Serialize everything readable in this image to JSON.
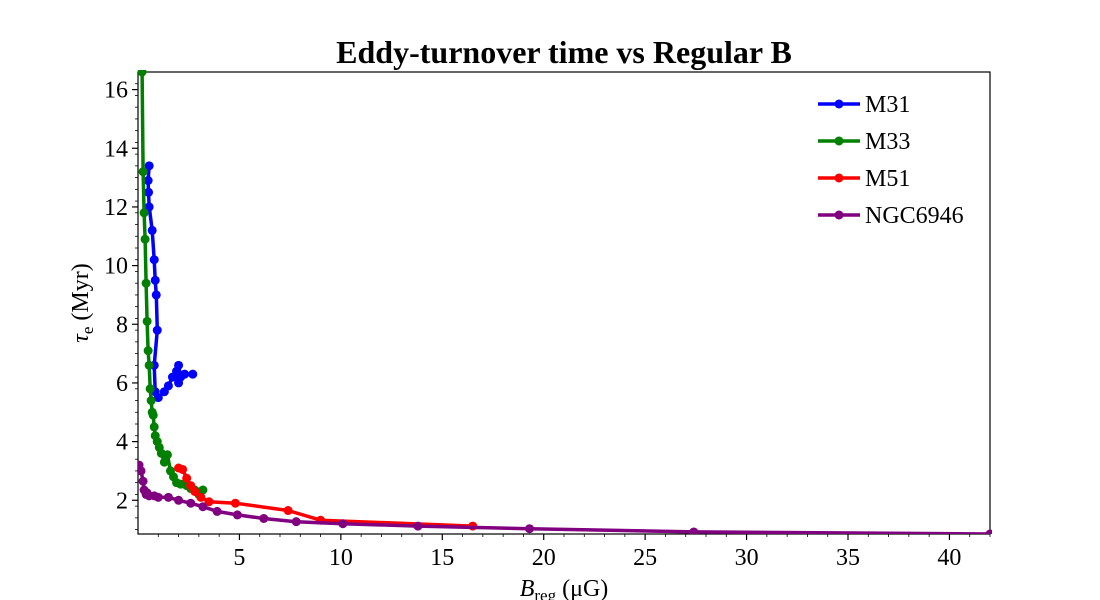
{
  "chart_data": {
    "type": "line",
    "title": "Eddy-turnover time vs Regular B",
    "xlabel": {
      "main": "B",
      "sub": "reg",
      "rest": " (μG)"
    },
    "ylabel": {
      "main": "τ",
      "sub": "e",
      "rest": " (Myr)"
    },
    "xlim": [
      0,
      42
    ],
    "ylim": [
      0.85,
      16.6
    ],
    "xticks": [
      5,
      10,
      15,
      20,
      25,
      30,
      35,
      40
    ],
    "yticks": [
      2,
      4,
      6,
      8,
      10,
      12,
      14,
      16
    ],
    "legend_position": "top-right",
    "series": [
      {
        "name": "M31",
        "color": "#0000ff",
        "points": [
          [
            0.55,
            13.4
          ],
          [
            0.5,
            12.9
          ],
          [
            0.52,
            12.5
          ],
          [
            0.55,
            12.0
          ],
          [
            0.7,
            11.2
          ],
          [
            0.8,
            10.2
          ],
          [
            0.85,
            9.5
          ],
          [
            0.9,
            9.0
          ],
          [
            0.95,
            7.8
          ],
          [
            0.8,
            6.6
          ],
          [
            0.85,
            5.7
          ],
          [
            1.0,
            5.5
          ],
          [
            1.3,
            5.7
          ],
          [
            1.5,
            5.9
          ],
          [
            1.7,
            6.2
          ],
          [
            1.9,
            6.4
          ],
          [
            2.0,
            6.6
          ],
          [
            2.1,
            6.2
          ],
          [
            2.0,
            6.0
          ],
          [
            2.3,
            6.3
          ],
          [
            2.7,
            6.3
          ]
        ]
      },
      {
        "name": "M33",
        "color": "#008000",
        "points": [
          [
            0.2,
            16.6
          ],
          [
            0.25,
            13.2
          ],
          [
            0.3,
            11.8
          ],
          [
            0.35,
            10.9
          ],
          [
            0.4,
            9.4
          ],
          [
            0.45,
            8.1
          ],
          [
            0.5,
            7.1
          ],
          [
            0.55,
            6.6
          ],
          [
            0.6,
            5.8
          ],
          [
            0.65,
            5.4
          ],
          [
            0.7,
            5.0
          ],
          [
            0.75,
            4.9
          ],
          [
            0.8,
            4.5
          ],
          [
            0.85,
            4.2
          ],
          [
            0.95,
            4.0
          ],
          [
            1.05,
            3.8
          ],
          [
            1.15,
            3.6
          ],
          [
            1.3,
            3.3
          ],
          [
            1.45,
            3.55
          ],
          [
            1.6,
            3.0
          ],
          [
            1.75,
            2.8
          ],
          [
            1.9,
            2.6
          ],
          [
            2.1,
            2.55
          ],
          [
            2.4,
            2.5
          ],
          [
            2.6,
            2.4
          ],
          [
            2.8,
            2.35
          ],
          [
            3.0,
            2.2
          ],
          [
            3.1,
            2.3
          ],
          [
            3.2,
            2.35
          ]
        ]
      },
      {
        "name": "M51",
        "color": "#ff0000",
        "points": [
          [
            2.0,
            3.1
          ],
          [
            2.2,
            3.05
          ],
          [
            2.4,
            2.75
          ],
          [
            2.6,
            2.5
          ],
          [
            2.8,
            2.3
          ],
          [
            3.1,
            2.1
          ],
          [
            3.5,
            1.95
          ],
          [
            4.8,
            1.9
          ],
          [
            7.4,
            1.65
          ],
          [
            9.0,
            1.32
          ],
          [
            16.5,
            1.12
          ]
        ]
      },
      {
        "name": "NGC6946",
        "color": "#800080",
        "points": [
          [
            0.05,
            3.2
          ],
          [
            0.15,
            3.0
          ],
          [
            0.25,
            2.65
          ],
          [
            0.3,
            2.35
          ],
          [
            0.45,
            2.25
          ],
          [
            0.4,
            2.2
          ],
          [
            0.55,
            2.15
          ],
          [
            0.8,
            2.15
          ],
          [
            1.0,
            2.1
          ],
          [
            1.5,
            2.1
          ],
          [
            2.0,
            2.0
          ],
          [
            2.6,
            1.9
          ],
          [
            3.2,
            1.78
          ],
          [
            3.9,
            1.62
          ],
          [
            4.9,
            1.5
          ],
          [
            6.2,
            1.38
          ],
          [
            7.8,
            1.27
          ],
          [
            10.1,
            1.2
          ],
          [
            13.8,
            1.12
          ],
          [
            19.3,
            1.03
          ],
          [
            27.4,
            0.92
          ],
          [
            42.0,
            0.85
          ]
        ]
      }
    ]
  }
}
